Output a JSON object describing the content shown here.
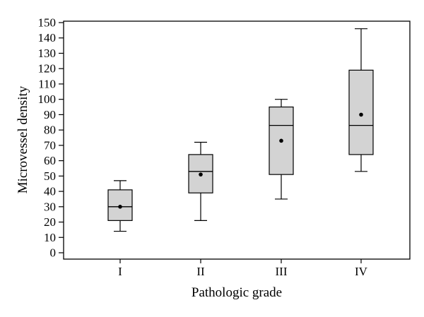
{
  "chart_data": {
    "type": "box",
    "xlabel": "Pathologic grade",
    "ylabel": "Microvessel density",
    "ylim": [
      0,
      150
    ],
    "y_ticks": [
      0,
      10,
      20,
      30,
      40,
      50,
      60,
      70,
      80,
      90,
      100,
      110,
      120,
      130,
      140,
      150
    ],
    "categories": [
      "I",
      "II",
      "III",
      "IV"
    ],
    "boxes": [
      {
        "category": "I",
        "whisker_low": 14,
        "q1": 21,
        "median": 30,
        "q3": 41,
        "whisker_high": 47,
        "mean": 30
      },
      {
        "category": "II",
        "whisker_low": 21,
        "q1": 39,
        "median": 53,
        "q3": 64,
        "whisker_high": 72,
        "mean": 51
      },
      {
        "category": "III",
        "whisker_low": 35,
        "q1": 51,
        "median": 83,
        "q3": 95,
        "whisker_high": 100,
        "mean": 73
      },
      {
        "category": "IV",
        "whisker_low": 53,
        "q1": 64,
        "median": 83,
        "q3": 119,
        "whisker_high": 146,
        "mean": 90
      }
    ],
    "box_fill": "#d3d3d3",
    "grid": false,
    "legend": "none"
  }
}
